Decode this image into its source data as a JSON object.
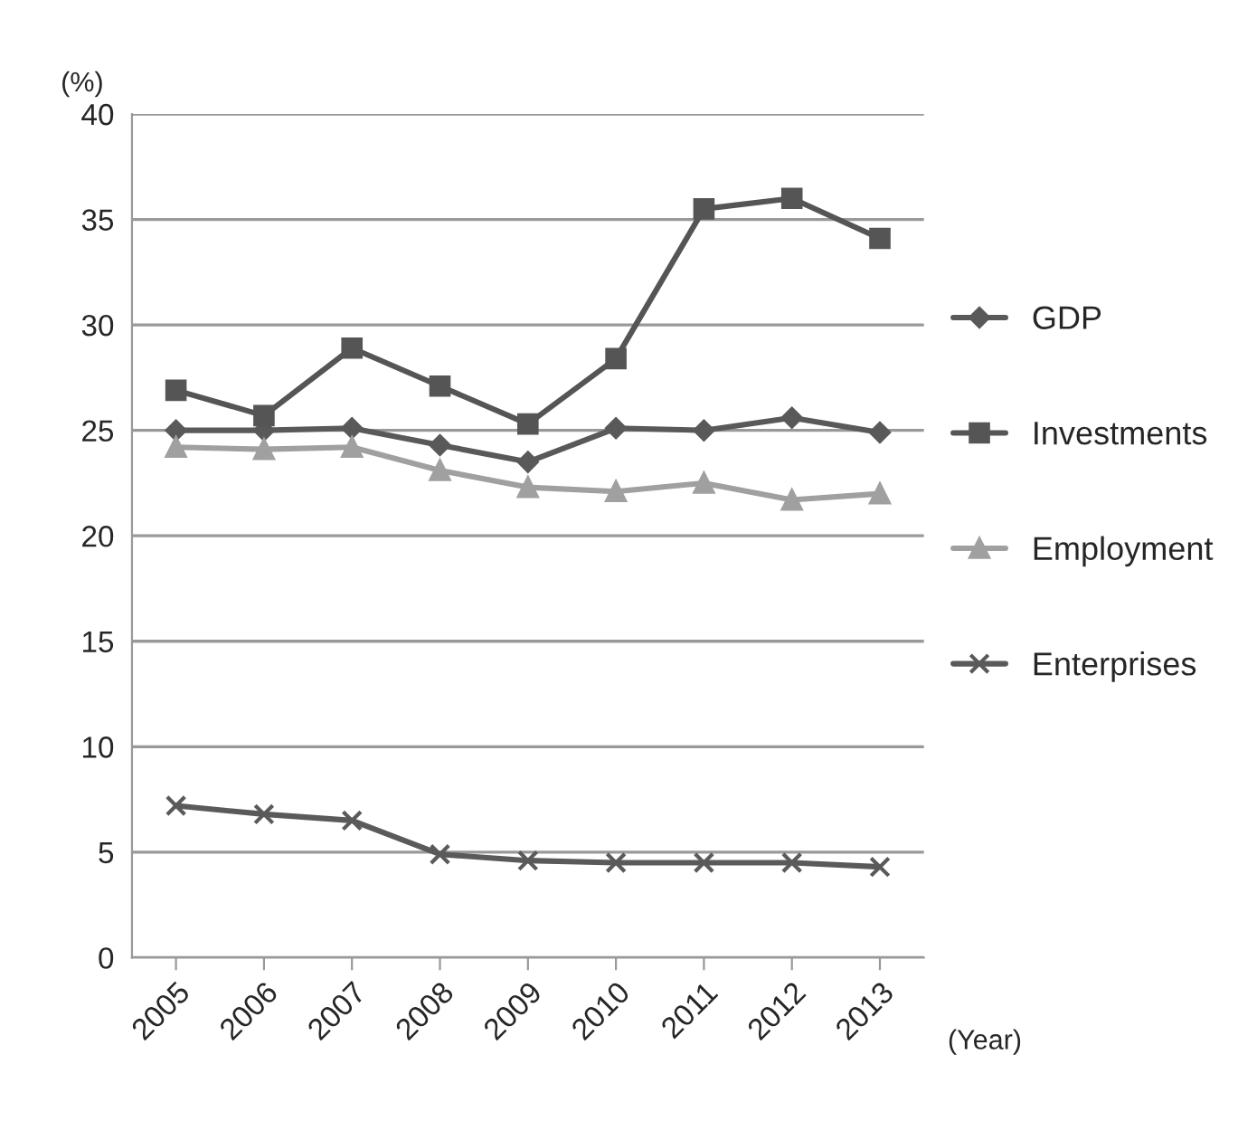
{
  "chart_data": {
    "type": "line",
    "ylabel": "(%)",
    "xlabel": "(Year)",
    "categories": [
      "2005",
      "2006",
      "2007",
      "2008",
      "2009",
      "2010",
      "2011",
      "2012",
      "2013"
    ],
    "series": [
      {
        "name": "GDP",
        "color": "#595959",
        "marker": "diamond",
        "values": [
          25.0,
          25.0,
          25.1,
          24.3,
          23.5,
          25.1,
          25.0,
          25.6,
          24.9
        ]
      },
      {
        "name": "Investments",
        "color": "#555555",
        "marker": "square",
        "values": [
          26.9,
          25.7,
          28.9,
          27.1,
          25.3,
          28.4,
          35.5,
          36.0,
          34.1
        ]
      },
      {
        "name": "Employment",
        "color": "#a0a0a0",
        "marker": "triangle",
        "values": [
          24.2,
          24.1,
          24.2,
          23.1,
          22.3,
          22.1,
          22.5,
          21.7,
          22.0
        ]
      },
      {
        "name": "Enterprises",
        "color": "#5a5a5a",
        "marker": "cross",
        "values": [
          7.2,
          6.8,
          6.5,
          4.9,
          4.6,
          4.5,
          4.5,
          4.5,
          4.3
        ]
      }
    ],
    "ylim": [
      0,
      40
    ],
    "yticks": [
      0,
      5,
      10,
      15,
      20,
      25,
      30,
      35,
      40
    ],
    "grid": "y",
    "legend": "right"
  }
}
